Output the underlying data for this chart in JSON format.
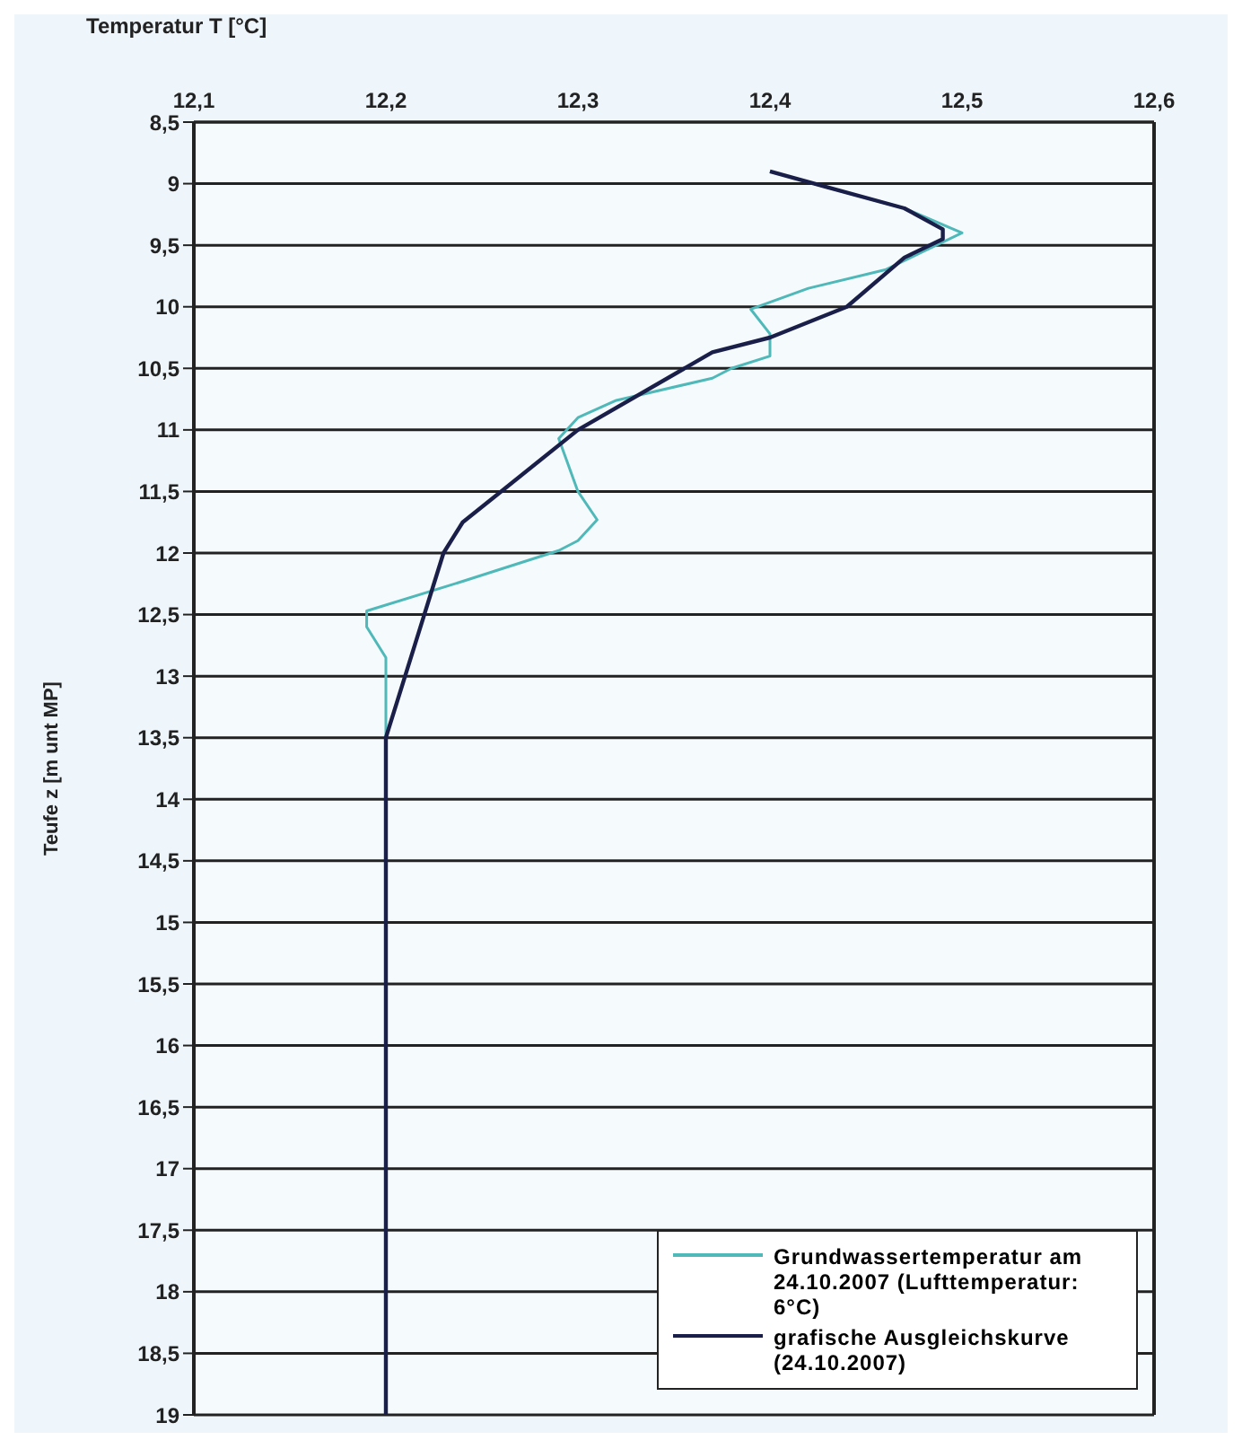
{
  "chart_data": {
    "type": "line",
    "xlabel": "Temperatur T [°C]",
    "ylabel": "Teufe z [m unt MP]",
    "xlim": [
      12.1,
      12.6
    ],
    "xticks": [
      {
        "value": 12.1,
        "label": "12,1"
      },
      {
        "value": 12.2,
        "label": "12,2"
      },
      {
        "value": 12.3,
        "label": "12,3"
      },
      {
        "value": 12.4,
        "label": "12,4"
      },
      {
        "value": 12.5,
        "label": "12,5"
      },
      {
        "value": 12.6,
        "label": "12,6"
      }
    ],
    "ylim": [
      19,
      8.5
    ],
    "yticks": [
      {
        "value": 8.5,
        "label": "8,5"
      },
      {
        "value": 9,
        "label": "9"
      },
      {
        "value": 9.5,
        "label": "9,5"
      },
      {
        "value": 10,
        "label": "10"
      },
      {
        "value": 10.5,
        "label": "10,5"
      },
      {
        "value": 11,
        "label": "11"
      },
      {
        "value": 11.5,
        "label": "11,5"
      },
      {
        "value": 12,
        "label": "12"
      },
      {
        "value": 12.5,
        "label": "12,5"
      },
      {
        "value": 13,
        "label": "13"
      },
      {
        "value": 13.5,
        "label": "13,5"
      },
      {
        "value": 14,
        "label": "14"
      },
      {
        "value": 14.5,
        "label": "14,5"
      },
      {
        "value": 15,
        "label": "15"
      },
      {
        "value": 15.5,
        "label": "15,5"
      },
      {
        "value": 16,
        "label": "16"
      },
      {
        "value": 16.5,
        "label": "16,5"
      },
      {
        "value": 17,
        "label": "17"
      },
      {
        "value": 17.5,
        "label": "17,5"
      },
      {
        "value": 18,
        "label": "18"
      },
      {
        "value": 18.5,
        "label": "18,5"
      },
      {
        "value": 19,
        "label": "19"
      }
    ],
    "grid": "y",
    "legend": "bottom right",
    "marker": "none",
    "line_style": "solid",
    "series": [
      {
        "name": "Grundwassertemperatur am 24.10.2007 (Lufttemperatur: 6°C)",
        "color": "#4fb8b8",
        "x": [
          12.4,
          12.43,
          12.47,
          12.5,
          12.48,
          12.46,
          12.42,
          12.39,
          12.4,
          12.4,
          12.38,
          12.37,
          12.32,
          12.3,
          12.29,
          12.3,
          12.31,
          12.3,
          12.29,
          12.24,
          12.19,
          12.19,
          12.2,
          12.2,
          12.2
        ],
        "values": [
          8.9,
          9.03,
          9.2,
          9.4,
          9.55,
          9.7,
          9.85,
          10.02,
          10.22,
          10.4,
          10.5,
          10.58,
          10.76,
          10.9,
          11.07,
          11.5,
          11.73,
          11.9,
          11.98,
          12.23,
          12.47,
          12.6,
          12.85,
          13.4,
          14
        ]
      },
      {
        "name": "grafische Ausgleichskurve (24.10.2007)",
        "color": "#1a1f4a",
        "x": [
          12.4,
          12.43,
          12.47,
          12.49,
          12.49,
          12.47,
          12.44,
          12.4,
          12.37,
          12.3,
          12.26,
          12.24,
          12.23,
          12.22,
          12.21,
          12.2,
          12.2,
          12.2,
          12.2
        ],
        "values": [
          8.9,
          9.03,
          9.2,
          9.37,
          9.45,
          9.6,
          10,
          10.25,
          10.37,
          11,
          11.5,
          11.75,
          12,
          12.5,
          13,
          13.5,
          14,
          15,
          19
        ]
      }
    ]
  }
}
